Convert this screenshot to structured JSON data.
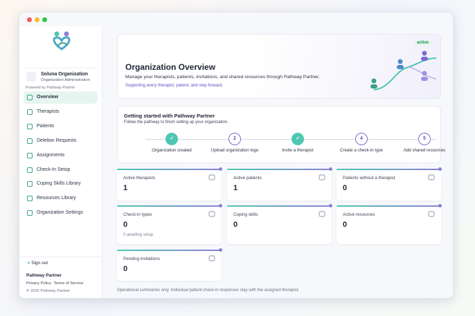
{
  "sidebar": {
    "org_name": "Soluna Organization",
    "org_role": "Organization Administration",
    "powered_by": "Powered by Pathway Partner",
    "nav": [
      "Overview",
      "Therapists",
      "Patients",
      "Deletion Requests",
      "Assignments",
      "Check-In Setup",
      "Coping Skills Library",
      "Resources Library",
      "Organization Settings"
    ],
    "sign_out": "Sign out",
    "brand": "Pathway Partner",
    "links": [
      "Privacy Policy",
      "Terms of Service"
    ],
    "copyright": "© 2026 Pathway Partner"
  },
  "header": {
    "badge": "active",
    "title": "Organization Overview",
    "description": "Manage your therapists, patients, invitations, and shared resources through Pathway Partner.",
    "tagline": "Supporting every therapist, patient, and step forward."
  },
  "onboarding": {
    "title": "Getting started with Pathway Partner",
    "subtitle": "Follow the pathway to finish setting up your organization.",
    "steps": [
      {
        "done": true,
        "label": "Organization created"
      },
      {
        "number": "2",
        "label": "Upload organization logo"
      },
      {
        "done": true,
        "label": "Invite a therapist"
      },
      {
        "number": "4",
        "label": "Create a check-in type"
      },
      {
        "number": "5",
        "label": "Add shared resources"
      }
    ]
  },
  "stats": [
    {
      "label": "Active therapists",
      "value": 1
    },
    {
      "label": "Active patients",
      "value": 1
    },
    {
      "label": "Patients without a therapist",
      "value": 0
    },
    {
      "label": "Check-in types",
      "value": 0,
      "note": "0 awaiting setup"
    },
    {
      "label": "Coping skills",
      "value": 0
    },
    {
      "label": "Active resources",
      "value": 0
    },
    {
      "label": "Pending invitations",
      "value": 0
    }
  ],
  "footer": "Operational summaries only. Individual patient check-in responses stay with the assigned therapist."
}
